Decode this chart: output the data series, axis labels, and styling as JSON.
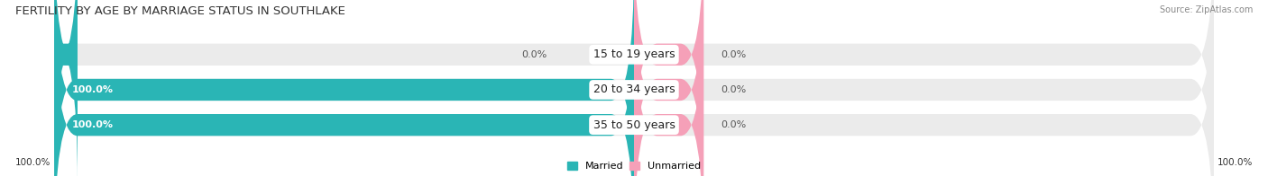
{
  "title": "FERTILITY BY AGE BY MARRIAGE STATUS IN SOUTHLAKE",
  "source": "Source: ZipAtlas.com",
  "categories": [
    "15 to 19 years",
    "20 to 34 years",
    "35 to 50 years"
  ],
  "married_values": [
    0.0,
    100.0,
    100.0
  ],
  "unmarried_values": [
    0.0,
    0.0,
    0.0
  ],
  "married_color": "#2ab5b5",
  "unmarried_color": "#f5a0b8",
  "bar_bg_color": "#ebebeb",
  "title_fontsize": 9.5,
  "label_fontsize": 8.5,
  "value_fontsize": 8.0,
  "axis_label_left": "100.0%",
  "axis_label_right": "100.0%",
  "fig_bg": "#ffffff",
  "married_label_color": "#ffffff",
  "unmarried_label_color": "#555555",
  "source_color": "#888888"
}
